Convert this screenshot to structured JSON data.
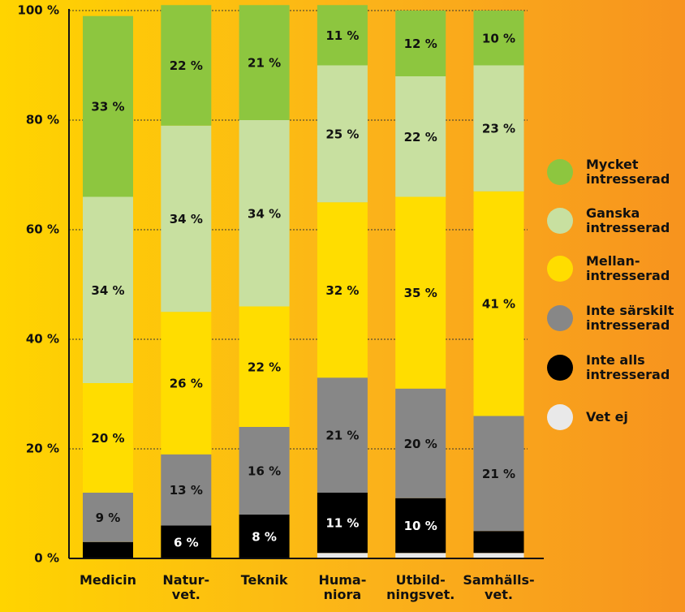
{
  "chart_data": {
    "type": "stacked_bar",
    "categories": [
      "Medicin",
      "Natur-\nvet.",
      "Teknik",
      "Huma-\nniora",
      "Utbild-\nningsvet.",
      "Samhälls-\nvet."
    ],
    "series": [
      {
        "name": "Vet ej",
        "color": "#e9e9e9",
        "values": [
          0,
          0,
          0,
          1,
          1,
          1
        ],
        "value_labels": [
          null,
          null,
          null,
          null,
          null,
          null
        ]
      },
      {
        "name": "Inte alls\nintresserad",
        "color": "#000000",
        "values": [
          3,
          6,
          8,
          11,
          10,
          4
        ],
        "value_labels": [
          null,
          "6 %",
          "8 %",
          "11 %",
          "10 %",
          null
        ]
      },
      {
        "name": "Inte särskilt\nintresserad",
        "color": "#878787",
        "values": [
          9,
          13,
          16,
          21,
          20,
          21
        ],
        "value_labels": [
          "9 %",
          "13 %",
          "16 %",
          "21 %",
          "20 %",
          "21 %"
        ]
      },
      {
        "name": "Mellan-\nintresserad",
        "color": "#ffdd00",
        "values": [
          20,
          26,
          22,
          32,
          35,
          41
        ],
        "value_labels": [
          "20 %",
          "26 %",
          "22 %",
          "32 %",
          "35 %",
          "41 %"
        ]
      },
      {
        "name": "Ganska\nintresserad",
        "color": "#c8e0a0",
        "values": [
          34,
          34,
          34,
          25,
          22,
          23
        ],
        "value_labels": [
          "34 %",
          "34 %",
          "34 %",
          "25 %",
          "22 %",
          "23 %"
        ]
      },
      {
        "name": "Mycket\nintresserad",
        "color": "#8dc63f",
        "values": [
          33,
          22,
          21,
          11,
          12,
          10
        ],
        "value_labels": [
          "33 %",
          "22 %",
          "21 %",
          "11 %",
          "12 %",
          "10 %"
        ]
      }
    ],
    "ylim": [
      0,
      100
    ],
    "yticks": [
      {
        "value": 0,
        "label": "0 %"
      },
      {
        "value": 20,
        "label": "20 %"
      },
      {
        "value": 40,
        "label": "40 %"
      },
      {
        "value": 60,
        "label": "60 %"
      },
      {
        "value": 80,
        "label": "80 %"
      },
      {
        "value": 100,
        "label": "100 %"
      }
    ],
    "grid": true,
    "legend": "right"
  }
}
